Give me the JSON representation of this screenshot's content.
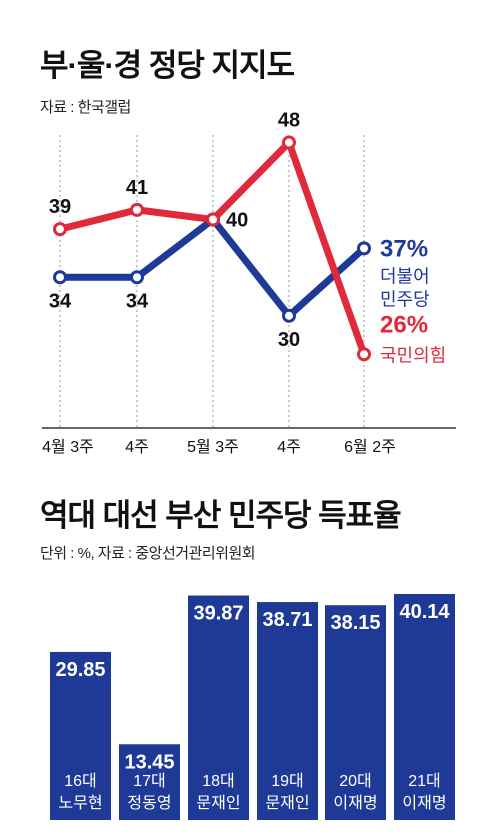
{
  "chart_data": [
    {
      "type": "line",
      "title": "부·울·경 정당 지지도",
      "subtitle": "자료 : 한국갤럽",
      "categories": [
        "4월 3주",
        "4주",
        "5월 3주",
        "4주",
        "6월 2주"
      ],
      "ylim": [
        20,
        52
      ],
      "grid": true,
      "series": [
        {
          "name": "국민의힘",
          "color": "#e02a3b",
          "values": [
            39,
            41,
            40,
            48,
            26
          ],
          "labels": [
            "39",
            "41",
            "",
            "48",
            "26%"
          ]
        },
        {
          "name": "더불어 민주당",
          "color": "#1f3997",
          "values": [
            34,
            34,
            40,
            30,
            37
          ],
          "labels": [
            "34",
            "34",
            "40",
            "30",
            "37%"
          ]
        }
      ],
      "end_labels": [
        {
          "series": 1,
          "line1": "더불어",
          "line2": "민주당"
        },
        {
          "series": 0,
          "line1": "국민의힘",
          "line2": ""
        }
      ]
    },
    {
      "type": "bar",
      "title": "역대 대선 부산 민주당 득표율",
      "subtitle": "단위 : %, 자료 : 중앙선거관리위원회",
      "categories": [
        "16대",
        "17대",
        "18대",
        "19대",
        "20대",
        "21대"
      ],
      "candidates": [
        "노무현",
        "정동영",
        "문재인",
        "문재인",
        "이재명",
        "이재명"
      ],
      "values": [
        29.85,
        13.45,
        39.87,
        38.71,
        38.15,
        40.14
      ],
      "value_labels": [
        "29.85",
        "13.45",
        "39.87",
        "38.71",
        "38.15",
        "40.14"
      ],
      "ylim": [
        0,
        40.14
      ],
      "color": "#1f3997"
    }
  ]
}
